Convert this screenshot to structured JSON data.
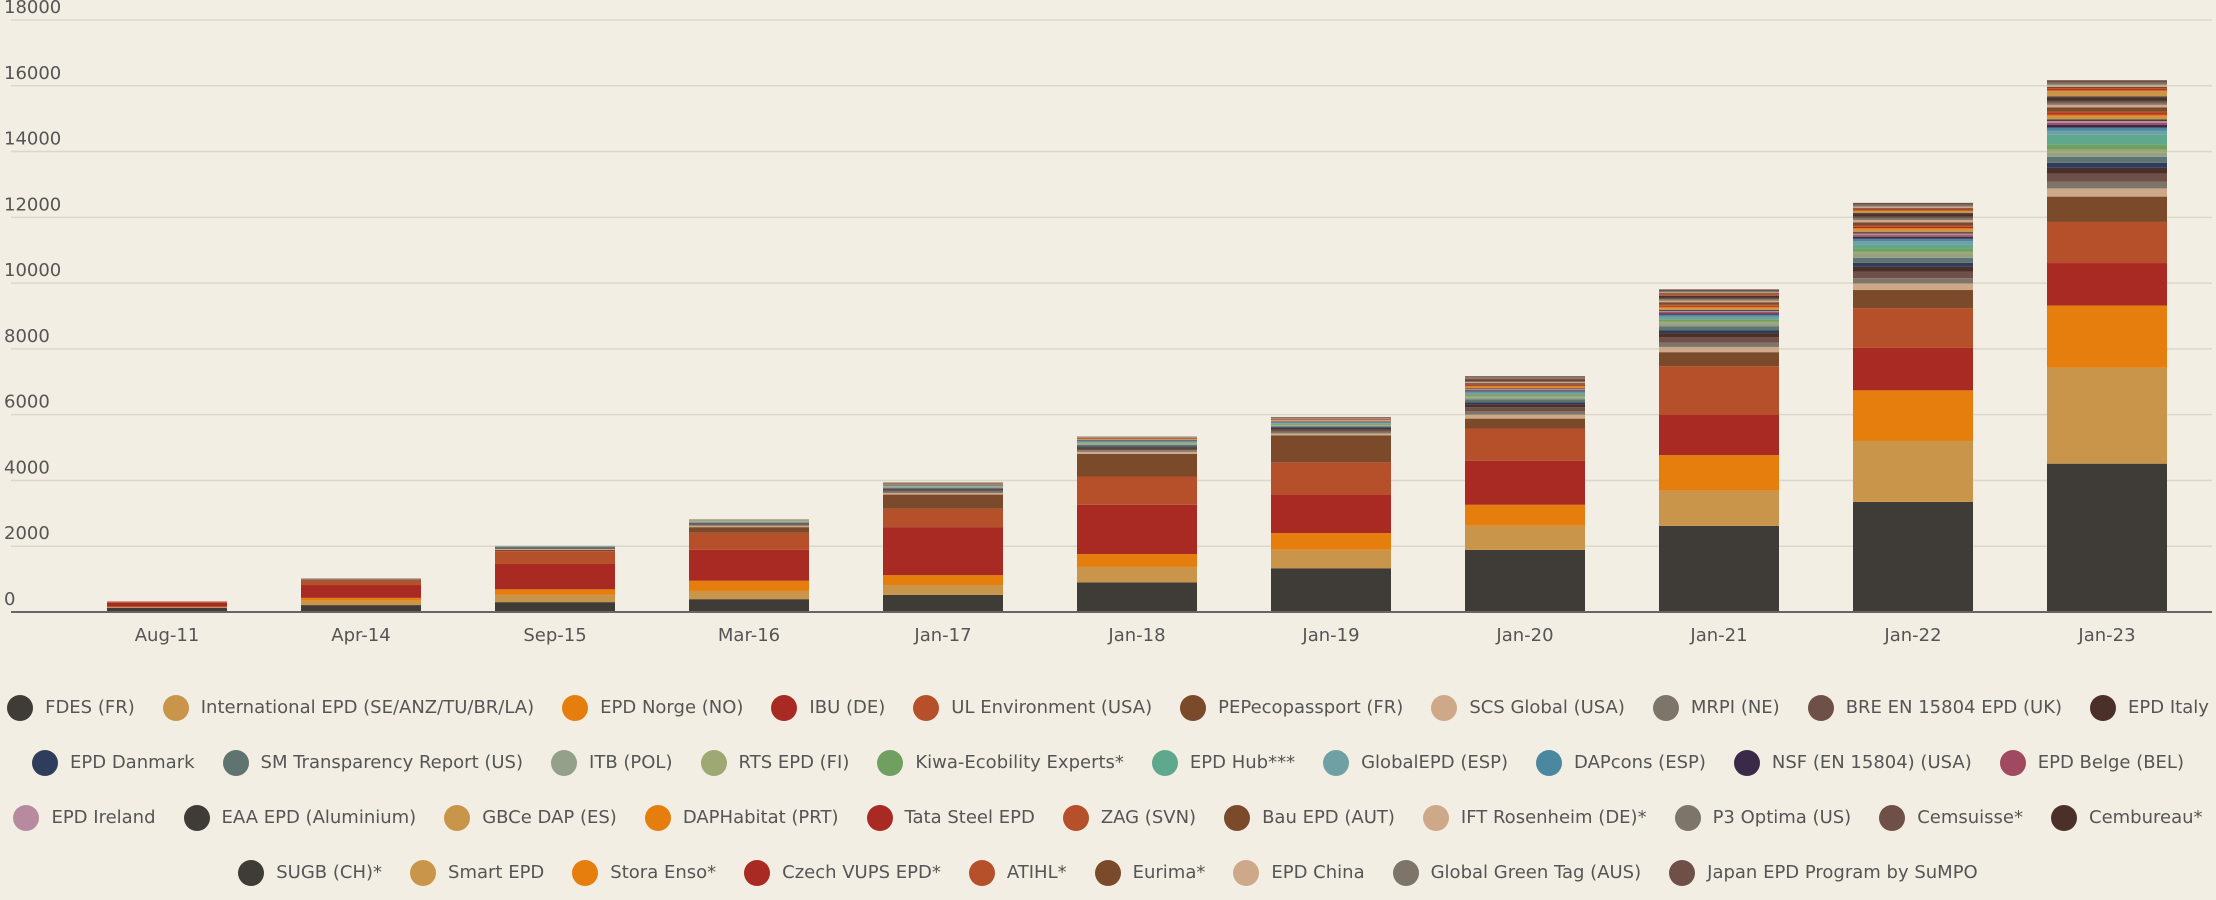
{
  "chart_data": {
    "type": "bar",
    "stacked": true,
    "categories": [
      "Aug-11",
      "Apr-14",
      "Sep-15",
      "Mar-16",
      "Jan-17",
      "Jan-18",
      "Jan-19",
      "Jan-20",
      "Jan-21",
      "Jan-22",
      "Jan-23"
    ],
    "ylim": [
      0,
      18000
    ],
    "yticks": [
      0,
      2000,
      4000,
      6000,
      8000,
      10000,
      12000,
      14000,
      16000,
      18000
    ],
    "grid": true,
    "legend": "bottom",
    "series": [
      {
        "name": "FDES (FR)",
        "color": "#3f3b36",
        "values": [
          130,
          210,
          300,
          390,
          520,
          900,
          1330,
          1890,
          2620,
          3350,
          4510
        ]
      },
      {
        "name": "International EPD (SE/ANZ/TU/BR/LA)",
        "color": "#c8954a",
        "values": [
          20,
          130,
          220,
          250,
          300,
          470,
          560,
          730,
          1070,
          1850,
          2920
        ]
      },
      {
        "name": "EPD Norge (NO)",
        "color": "#e67e0e",
        "values": [
          10,
          90,
          170,
          310,
          300,
          390,
          510,
          640,
          1080,
          1540,
          1890
        ]
      },
      {
        "name": "IBU (DE)",
        "color": "#a82a22",
        "values": [
          120,
          390,
          770,
          940,
          1460,
          1500,
          1170,
          1340,
          1240,
          1290,
          1290
        ]
      },
      {
        "name": "UL Environment (USA)",
        "color": "#b5502a",
        "values": [
          40,
          130,
          390,
          520,
          560,
          860,
          980,
          980,
          1460,
          1210,
          1250
        ]
      },
      {
        "name": "PEPecopassport (FR)",
        "color": "#7a4a2a",
        "values": [
          0,
          40,
          40,
          170,
          430,
          690,
          820,
          300,
          430,
          550,
          770
        ]
      },
      {
        "name": "SCS Global (USA)",
        "color": "#cda98a",
        "values": [
          0,
          10,
          20,
          40,
          50,
          60,
          60,
          120,
          160,
          200,
          250
        ]
      },
      {
        "name": "MRPI (NE)",
        "color": "#7d746a",
        "values": [
          0,
          10,
          20,
          30,
          40,
          50,
          50,
          100,
          130,
          160,
          200
        ]
      },
      {
        "name": "BRE EN 15804 EPD (UK)",
        "color": "#6e5048",
        "values": [
          0,
          10,
          20,
          30,
          40,
          50,
          60,
          130,
          170,
          200,
          250
        ]
      },
      {
        "name": "EPD Italy",
        "color": "#4a3028",
        "values": [
          0,
          0,
          10,
          20,
          30,
          40,
          40,
          90,
          120,
          150,
          180
        ]
      },
      {
        "name": "EPD Danmark",
        "color": "#2f3d5c",
        "values": [
          0,
          0,
          10,
          10,
          20,
          30,
          30,
          60,
          90,
          120,
          150
        ]
      },
      {
        "name": "SM Transparency Report (US)",
        "color": "#5f7470",
        "values": [
          0,
          0,
          10,
          20,
          30,
          40,
          40,
          90,
          120,
          150,
          180
        ]
      },
      {
        "name": "ITB (POL)",
        "color": "#94a08a",
        "values": [
          0,
          0,
          10,
          10,
          20,
          30,
          30,
          60,
          80,
          100,
          120
        ]
      },
      {
        "name": "RTS EPD (FI)",
        "color": "#9ea872",
        "values": [
          0,
          0,
          0,
          10,
          10,
          20,
          20,
          40,
          60,
          80,
          100
        ]
      },
      {
        "name": "Kiwa-Ecobility Experts*",
        "color": "#6fa060",
        "values": [
          0,
          0,
          0,
          10,
          10,
          20,
          20,
          40,
          70,
          100,
          150
        ]
      },
      {
        "name": "EPD Hub***",
        "color": "#5fa88e",
        "values": [
          0,
          0,
          0,
          0,
          0,
          0,
          0,
          0,
          0,
          120,
          300
        ]
      },
      {
        "name": "GlobalEPD (ESP)",
        "color": "#6ea0a4",
        "values": [
          0,
          0,
          10,
          20,
          20,
          30,
          30,
          60,
          80,
          100,
          120
        ]
      },
      {
        "name": "DAPcons (ESP)",
        "color": "#4a88a0",
        "values": [
          0,
          0,
          10,
          10,
          10,
          20,
          20,
          40,
          60,
          80,
          100
        ]
      },
      {
        "name": "NSF (EN 15804) (USA)",
        "color": "#3a2a48",
        "values": [
          0,
          0,
          0,
          0,
          10,
          10,
          10,
          20,
          40,
          60,
          80
        ]
      },
      {
        "name": "EPD Belge (BEL)",
        "color": "#a04a62",
        "values": [
          0,
          0,
          0,
          0,
          10,
          10,
          10,
          30,
          40,
          50,
          60
        ]
      },
      {
        "name": "EPD Ireland",
        "color": "#b88aa0",
        "values": [
          0,
          0,
          0,
          0,
          0,
          0,
          10,
          20,
          30,
          50,
          60
        ]
      },
      {
        "name": "EAA EPD (Aluminium)",
        "color": "#3f3b36",
        "values": [
          0,
          0,
          0,
          0,
          10,
          10,
          10,
          20,
          30,
          40,
          50
        ]
      },
      {
        "name": "GBCe DAP (ES)",
        "color": "#c8954a",
        "values": [
          0,
          0,
          0,
          10,
          10,
          20,
          20,
          40,
          60,
          70,
          80
        ]
      },
      {
        "name": "DAPHabitat (PRT)",
        "color": "#e67e0e",
        "values": [
          0,
          0,
          0,
          0,
          10,
          10,
          10,
          30,
          40,
          50,
          60
        ]
      },
      {
        "name": "Tata Steel EPD",
        "color": "#a82a22",
        "values": [
          0,
          0,
          0,
          0,
          0,
          10,
          10,
          20,
          30,
          40,
          50
        ]
      },
      {
        "name": "ZAG (SVN)",
        "color": "#b5502a",
        "values": [
          0,
          0,
          0,
          0,
          0,
          10,
          10,
          20,
          30,
          40,
          50
        ]
      },
      {
        "name": "Bau EPD (AUT)",
        "color": "#7a4a2a",
        "values": [
          0,
          0,
          0,
          10,
          20,
          20,
          20,
          50,
          80,
          100,
          120
        ]
      },
      {
        "name": "IFT Rosenheim (DE)*",
        "color": "#cda98a",
        "values": [
          0,
          0,
          0,
          10,
          10,
          10,
          10,
          30,
          50,
          70,
          80
        ]
      },
      {
        "name": "P3 Optima (US)",
        "color": "#7d746a",
        "values": [
          0,
          0,
          0,
          0,
          0,
          10,
          10,
          20,
          40,
          50,
          60
        ]
      },
      {
        "name": "Cemsuisse*",
        "color": "#6e5048",
        "values": [
          0,
          0,
          0,
          0,
          0,
          0,
          0,
          20,
          40,
          50,
          60
        ]
      },
      {
        "name": "Cembureau*",
        "color": "#4a3028",
        "values": [
          0,
          0,
          0,
          0,
          10,
          10,
          10,
          40,
          60,
          80,
          100
        ]
      },
      {
        "name": "SUGB (CH)*",
        "color": "#3f3b36",
        "values": [
          0,
          0,
          0,
          0,
          0,
          0,
          0,
          10,
          20,
          30,
          40
        ]
      },
      {
        "name": "Smart EPD",
        "color": "#c8954a",
        "values": [
          0,
          0,
          0,
          0,
          0,
          0,
          0,
          0,
          0,
          60,
          150
        ]
      },
      {
        "name": "Stora Enso*",
        "color": "#e67e0e",
        "values": [
          0,
          0,
          0,
          0,
          0,
          0,
          0,
          10,
          20,
          20,
          30
        ]
      },
      {
        "name": "Czech VUPS EPD*",
        "color": "#a82a22",
        "values": [
          0,
          0,
          0,
          0,
          0,
          0,
          0,
          10,
          20,
          30,
          40
        ]
      },
      {
        "name": "ATIHL*",
        "color": "#b5502a",
        "values": [
          0,
          0,
          0,
          0,
          0,
          0,
          0,
          0,
          10,
          20,
          30
        ]
      },
      {
        "name": "Eurima*",
        "color": "#7a4a2a",
        "values": [
          0,
          0,
          0,
          0,
          0,
          0,
          0,
          10,
          20,
          30,
          40
        ]
      },
      {
        "name": "EPD China",
        "color": "#cda98a",
        "values": [
          0,
          0,
          0,
          0,
          0,
          0,
          0,
          0,
          20,
          40,
          60
        ]
      },
      {
        "name": "Global Green Tag (AUS)",
        "color": "#7d746a",
        "values": [
          0,
          0,
          0,
          0,
          0,
          0,
          10,
          30,
          40,
          50,
          60
        ]
      },
      {
        "name": "Japan EPD Program by SuMPO",
        "color": "#6e5048",
        "values": [
          0,
          0,
          0,
          0,
          0,
          0,
          10,
          30,
          50,
          60,
          80
        ]
      }
    ]
  }
}
